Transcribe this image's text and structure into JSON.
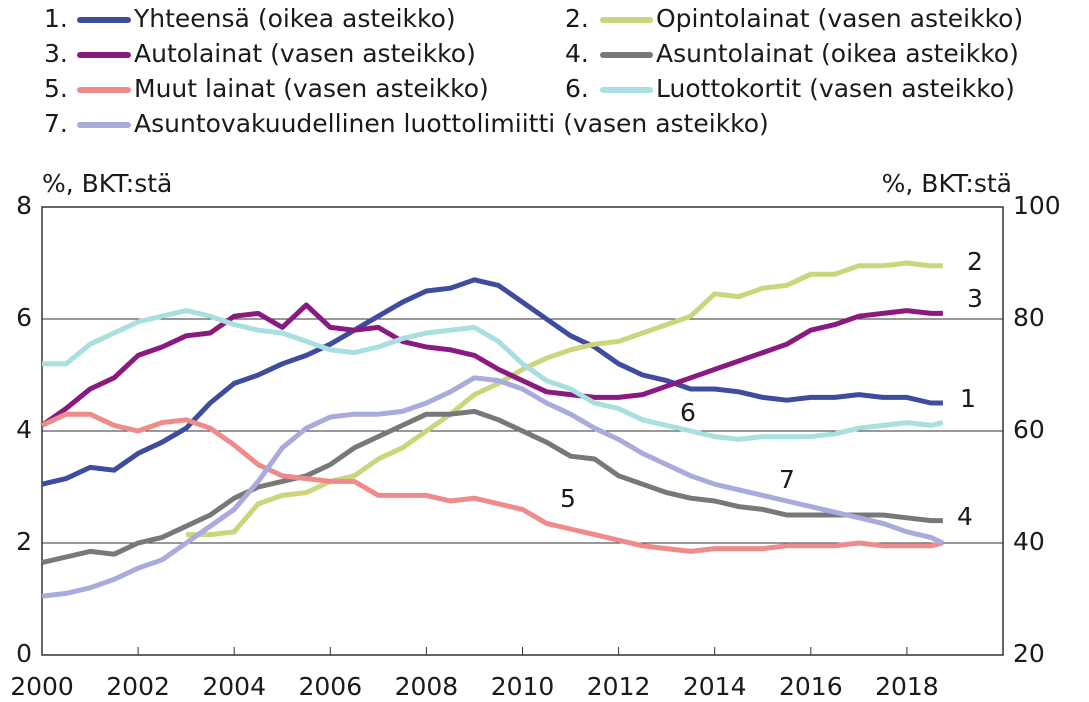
{
  "chart_data": {
    "type": "line",
    "ylabel": "%, BKT:stä",
    "y2label": "%, BKT:stä",
    "xlim": [
      2000,
      2020
    ],
    "xticks": [
      2000,
      2002,
      2004,
      2006,
      2008,
      2010,
      2012,
      2014,
      2016,
      2018
    ],
    "ylim": [
      0,
      8
    ],
    "yticks": [
      0,
      2,
      4,
      6,
      8
    ],
    "y2lim": [
      20,
      100
    ],
    "y2ticks": [
      20,
      40,
      60,
      80,
      100
    ],
    "grid": true,
    "x": [
      2000,
      2000.5,
      2001,
      2001.5,
      2002,
      2002.5,
      2003,
      2003.5,
      2004,
      2004.5,
      2005,
      2005.5,
      2006,
      2006.5,
      2007,
      2007.5,
      2008,
      2008.5,
      2009,
      2009.5,
      2010,
      2010.5,
      2011,
      2011.5,
      2012,
      2012.5,
      2013,
      2013.5,
      2014,
      2014.5,
      2015,
      2015.5,
      2016,
      2016.5,
      2017,
      2017.5,
      2018,
      2018.5,
      2018.75
    ],
    "series": [
      {
        "marker": "1.",
        "label": "1",
        "name": "Yhteensä (oikea asteikko)",
        "color": "#3f4c9e",
        "axis": "y2",
        "values": [
          50.5,
          51.5,
          53.5,
          53,
          56,
          58,
          60.5,
          65,
          68.5,
          70,
          72,
          73.5,
          75.5,
          78,
          80.5,
          83,
          85,
          85.5,
          87,
          86,
          83,
          80,
          77,
          75,
          72,
          70,
          69,
          67.5,
          67.5,
          67,
          66,
          65.5,
          66,
          66,
          66.5,
          66,
          66,
          65,
          65
        ]
      },
      {
        "marker": "2.",
        "label": "2",
        "name": "Opintolainat (vasen asteikko)",
        "color": "#cad57c",
        "values": [
          null,
          null,
          null,
          null,
          null,
          null,
          2.15,
          2.15,
          2.2,
          2.7,
          2.85,
          2.9,
          3.1,
          3.2,
          3.5,
          3.7,
          4.0,
          4.3,
          4.65,
          4.85,
          5.1,
          5.3,
          5.45,
          5.55,
          5.6,
          5.75,
          5.9,
          6.05,
          6.45,
          6.4,
          6.55,
          6.6,
          6.8,
          6.8,
          6.95,
          6.95,
          7.0,
          6.95,
          6.95
        ]
      },
      {
        "marker": "3.",
        "label": "3",
        "name": "Autolainat (vasen asteikko)",
        "color": "#8a1a80",
        "values": [
          4.1,
          4.4,
          4.75,
          4.95,
          5.35,
          5.5,
          5.7,
          5.75,
          6.05,
          6.1,
          5.85,
          6.25,
          5.85,
          5.8,
          5.85,
          5.6,
          5.5,
          5.45,
          5.35,
          5.1,
          4.9,
          4.7,
          4.65,
          4.6,
          4.6,
          4.65,
          4.8,
          4.95,
          5.1,
          5.25,
          5.4,
          5.55,
          5.8,
          5.9,
          6.05,
          6.1,
          6.15,
          6.1,
          6.1
        ]
      },
      {
        "marker": "4.",
        "label": "4",
        "name": "Asuntolainat (oikea asteikko)",
        "color": "#787878",
        "axis": "y2",
        "values": [
          36.5,
          37.5,
          38.5,
          38,
          40,
          41,
          43,
          45,
          48,
          50,
          51,
          52,
          54,
          57,
          59,
          61,
          63,
          63,
          63.5,
          62,
          60,
          58,
          55.5,
          55,
          52,
          50.5,
          49,
          48,
          47.5,
          46.5,
          46,
          45,
          45,
          45,
          45,
          45,
          44.5,
          44,
          44
        ]
      },
      {
        "marker": "5.",
        "label": "5",
        "name": "Muut lainat (vasen asteikko)",
        "color": "#ef8b8b",
        "values": [
          4.1,
          4.3,
          4.3,
          4.1,
          4.0,
          4.15,
          4.2,
          4.05,
          3.75,
          3.4,
          3.2,
          3.15,
          3.1,
          3.1,
          2.85,
          2.85,
          2.85,
          2.75,
          2.8,
          2.7,
          2.6,
          2.35,
          2.25,
          2.15,
          2.05,
          1.95,
          1.9,
          1.85,
          1.9,
          1.9,
          1.9,
          1.95,
          1.95,
          1.95,
          2.0,
          1.95,
          1.95,
          1.95,
          2.0
        ]
      },
      {
        "marker": "6.",
        "label": "6",
        "name": "Luottokortit (vasen asteikko)",
        "color": "#a8dfe0",
        "values": [
          5.2,
          5.2,
          5.55,
          5.75,
          5.95,
          6.05,
          6.15,
          6.05,
          5.9,
          5.8,
          5.75,
          5.6,
          5.45,
          5.4,
          5.5,
          5.65,
          5.75,
          5.8,
          5.85,
          5.6,
          5.2,
          4.9,
          4.75,
          4.5,
          4.4,
          4.2,
          4.1,
          4.0,
          3.9,
          3.85,
          3.9,
          3.9,
          3.9,
          3.95,
          4.05,
          4.1,
          4.15,
          4.1,
          4.15
        ]
      },
      {
        "marker": "7.",
        "label": "7",
        "name": "Asuntovakuudellinen luottolimiitti (vasen asteikko)",
        "color": "#a9abdd",
        "values": [
          1.05,
          1.1,
          1.2,
          1.35,
          1.55,
          1.7,
          2.0,
          2.3,
          2.6,
          3.1,
          3.7,
          4.05,
          4.25,
          4.3,
          4.3,
          4.35,
          4.5,
          4.7,
          4.95,
          4.9,
          4.75,
          4.5,
          4.3,
          4.05,
          3.85,
          3.6,
          3.4,
          3.2,
          3.05,
          2.95,
          2.85,
          2.75,
          2.65,
          2.55,
          2.45,
          2.35,
          2.2,
          2.1,
          2.0
        ]
      }
    ]
  }
}
